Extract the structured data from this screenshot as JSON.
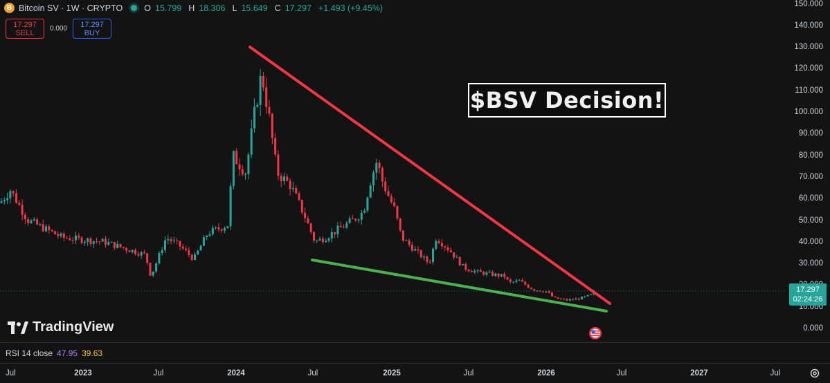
{
  "header": {
    "coin_glyph": "B",
    "symbol": "Bitcoin SV · 1W · CRYPTO",
    "o_label": "O",
    "o_value": "15.799",
    "h_label": "H",
    "h_value": "18.306",
    "l_label": "L",
    "l_value": "15.649",
    "c_label": "C",
    "c_value": "17.297",
    "change": "+1.493 (+9.45%)"
  },
  "trade": {
    "sell_price": "17.297",
    "sell_label": "SELL",
    "spread": "0.000",
    "buy_price": "17.297",
    "buy_label": "BUY"
  },
  "annotation": "$BSV Decision!",
  "branding": "TradingView",
  "price_tag": {
    "price": "17.297",
    "countdown": "02:24:26"
  },
  "rsi": {
    "name": "RSI 14 close",
    "value1": "47.95",
    "value2": "39.63"
  },
  "colors": {
    "up": "#26a69a",
    "down": "#f23645",
    "resistance": "#f23645",
    "support": "#4caf50",
    "background": "#131313"
  },
  "chart_data": {
    "type": "candlestick",
    "price_axis": {
      "ticks": [
        "150.000",
        "140.000",
        "130.000",
        "120.000",
        "110.000",
        "100.000",
        "90.000",
        "80.000",
        "70.000",
        "60.000",
        "50.000",
        "40.000",
        "30.000",
        "20.000",
        "10.000",
        "0.000"
      ],
      "ylim": [
        0,
        150
      ]
    },
    "time_axis": {
      "ticks": [
        "Jul",
        "2023",
        "Jul",
        "2024",
        "Jul",
        "2025",
        "Jul",
        "2026",
        "Jul",
        "2027",
        "Jul"
      ]
    },
    "trendlines": [
      {
        "name": "resistance",
        "from": {
          "date": "2024-03",
          "price": 130
        },
        "to": {
          "date": "2026-06",
          "price": 11
        }
      },
      {
        "name": "support",
        "from": {
          "date": "2024-07",
          "price": 31
        },
        "to": {
          "date": "2026-06",
          "price": 8
        }
      }
    ],
    "last_price": 17.297
  }
}
